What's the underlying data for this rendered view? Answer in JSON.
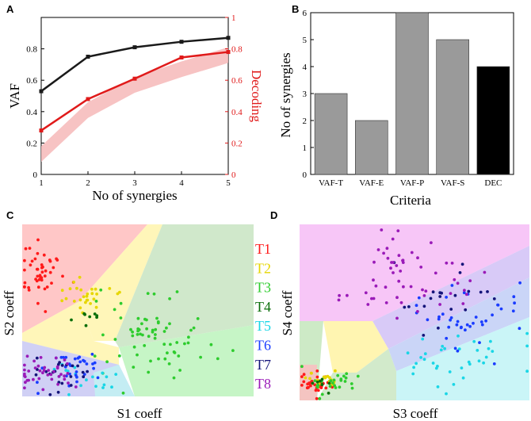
{
  "panels": {
    "A": "A",
    "B": "B",
    "C": "C",
    "D": "D"
  },
  "colors": {
    "black_line": "#1a1a1a",
    "red_line": "#e01a1a",
    "red_band": "#f6b8b8",
    "bar_gray": "#9a9a9a",
    "bar_black": "#000000"
  },
  "chart_data": [
    {
      "id": "A",
      "type": "line",
      "xlabel": "No of synergies",
      "ylabel": "VAF",
      "ylabel_right": "Decoding",
      "x": [
        1,
        2,
        3,
        4,
        5
      ],
      "xlim": [
        1,
        5
      ],
      "ylim": [
        0,
        1
      ],
      "ylim_right": [
        0,
        1
      ],
      "xticks": [
        "1",
        "2",
        "3",
        "4",
        "5"
      ],
      "yticks": [
        "0",
        "0.2",
        "0.4",
        "0.6",
        "0.8"
      ],
      "yticks_right": [
        "0",
        "0.2",
        "0.4",
        "0.6",
        "0.8",
        "1"
      ],
      "series": [
        {
          "name": "VAF",
          "axis": "left",
          "color": "#1a1a1a",
          "values": [
            0.53,
            0.75,
            0.81,
            0.845,
            0.87
          ]
        },
        {
          "name": "Decoding",
          "axis": "right",
          "color": "#e01a1a",
          "values": [
            0.28,
            0.48,
            0.61,
            0.745,
            0.78
          ]
        },
        {
          "name": "Decoding chance band",
          "axis": "right",
          "color": "#f6b8b8",
          "band": true,
          "values": [
            0.14,
            0.42,
            0.58,
            0.68,
            0.77
          ]
        }
      ]
    },
    {
      "id": "B",
      "type": "bar",
      "xlabel": "Criteria",
      "ylabel": "No of synergies",
      "categories": [
        "VAF-T",
        "VAF-E",
        "VAF-P",
        "VAF-S",
        "DEC"
      ],
      "values": [
        3,
        2,
        6,
        5,
        4
      ],
      "bar_colors": [
        "#9a9a9a",
        "#9a9a9a",
        "#9a9a9a",
        "#9a9a9a",
        "#000000"
      ],
      "ylim": [
        0,
        6
      ],
      "yticks": [
        "0",
        "1",
        "2",
        "3",
        "4",
        "5",
        "6"
      ]
    },
    {
      "id": "C",
      "type": "scatter",
      "xlabel": "S1 coeff",
      "ylabel": "S2 coeff",
      "classes": [
        "T1",
        "T2",
        "T3",
        "T4",
        "T5",
        "T6",
        "T7",
        "T8"
      ],
      "class_colors": [
        "#ff1a1a",
        "#e6d600",
        "#2ecc2e",
        "#0a6e0a",
        "#1ad6e6",
        "#1a3cff",
        "#14147a",
        "#9a1ab8"
      ],
      "clusters": [
        {
          "class": "T1",
          "cx": 0.08,
          "cy": 0.72,
          "sx": 0.05,
          "sy": 0.09,
          "n": 45
        },
        {
          "class": "T2",
          "cx": 0.27,
          "cy": 0.58,
          "sx": 0.06,
          "sy": 0.05,
          "n": 28
        },
        {
          "class": "T3",
          "cx": 0.58,
          "cy": 0.38,
          "sx": 0.12,
          "sy": 0.13,
          "n": 70
        },
        {
          "class": "T4",
          "cx": 0.3,
          "cy": 0.45,
          "sx": 0.06,
          "sy": 0.05,
          "n": 8
        },
        {
          "class": "T5",
          "cx": 0.25,
          "cy": 0.12,
          "sx": 0.08,
          "sy": 0.05,
          "n": 18
        },
        {
          "class": "T6",
          "cx": 0.22,
          "cy": 0.16,
          "sx": 0.08,
          "sy": 0.05,
          "n": 30
        },
        {
          "class": "T7",
          "cx": 0.18,
          "cy": 0.14,
          "sx": 0.07,
          "sy": 0.05,
          "n": 22
        },
        {
          "class": "T8",
          "cx": 0.1,
          "cy": 0.13,
          "sx": 0.07,
          "sy": 0.05,
          "n": 40
        }
      ]
    },
    {
      "id": "D",
      "type": "scatter",
      "xlabel": "S3 coeff",
      "ylabel": "S4 coeff",
      "classes": [
        "T1",
        "T2",
        "T3",
        "T4",
        "T5",
        "T6",
        "T7",
        "T8"
      ],
      "class_colors": [
        "#ff1a1a",
        "#e6d600",
        "#2ecc2e",
        "#0a6e0a",
        "#1ad6e6",
        "#1a3cff",
        "#14147a",
        "#9a1ab8"
      ],
      "clusters": [
        {
          "class": "T1",
          "cx": 0.06,
          "cy": 0.09,
          "sx": 0.04,
          "sy": 0.03,
          "n": 35
        },
        {
          "class": "T2",
          "cx": 0.13,
          "cy": 0.11,
          "sx": 0.05,
          "sy": 0.03,
          "n": 20
        },
        {
          "class": "T3",
          "cx": 0.14,
          "cy": 0.1,
          "sx": 0.06,
          "sy": 0.04,
          "n": 25
        },
        {
          "class": "T4",
          "cx": 0.1,
          "cy": 0.1,
          "sx": 0.05,
          "sy": 0.03,
          "n": 8
        },
        {
          "class": "T5",
          "cx": 0.65,
          "cy": 0.22,
          "sx": 0.14,
          "sy": 0.08,
          "n": 35
        },
        {
          "class": "T6",
          "cx": 0.7,
          "cy": 0.45,
          "sx": 0.13,
          "sy": 0.1,
          "n": 40
        },
        {
          "class": "T7",
          "cx": 0.6,
          "cy": 0.6,
          "sx": 0.12,
          "sy": 0.1,
          "n": 20
        },
        {
          "class": "T8",
          "cx": 0.45,
          "cy": 0.7,
          "sx": 0.12,
          "sy": 0.12,
          "n": 55
        }
      ]
    }
  ]
}
